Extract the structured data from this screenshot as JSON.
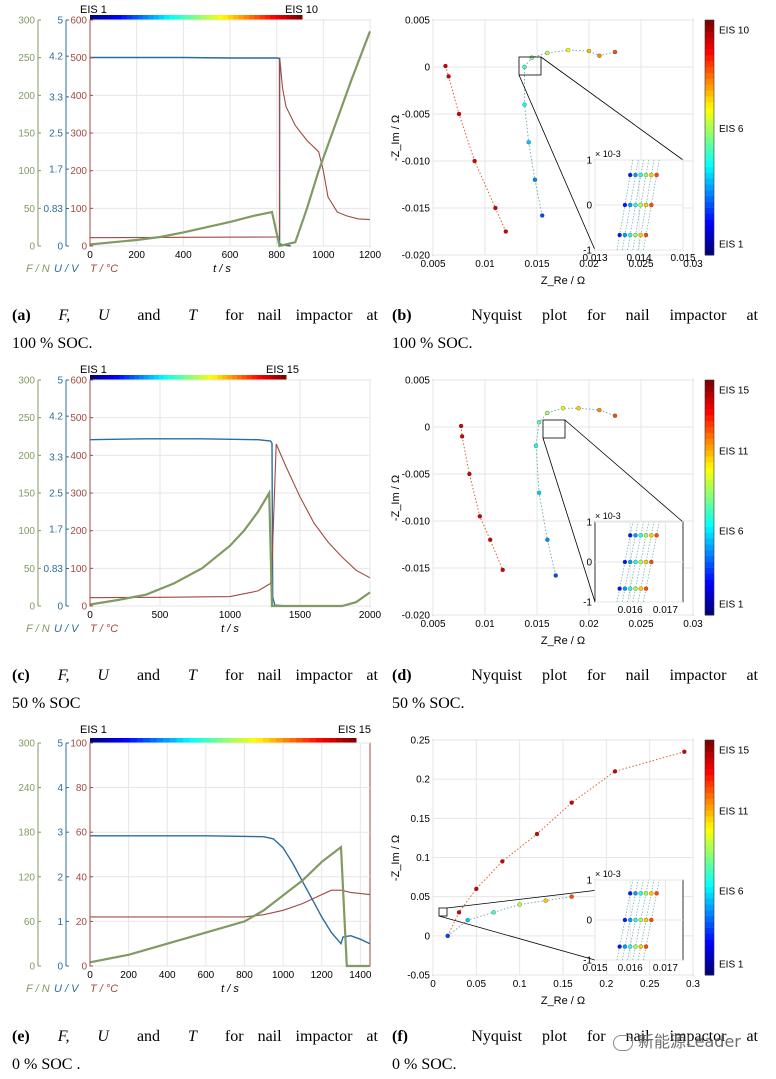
{
  "chart_data": [
    {
      "id": "a",
      "type": "line",
      "title": "F, U and T for nail impactor at 100 % SOC",
      "xlabel": "t / s",
      "xlim": [
        0,
        1200
      ],
      "xticks": [
        0,
        200,
        400,
        600,
        800,
        1000,
        1200
      ],
      "axes": [
        {
          "name": "F / N",
          "color": "#809a63",
          "lim": [
            0,
            300
          ],
          "ticks": [
            0,
            50,
            100,
            150,
            200,
            250,
            300
          ]
        },
        {
          "name": "U / V",
          "color": "#2b6c9e",
          "lim": [
            0,
            5
          ],
          "ticks": [
            0,
            0.83,
            1.7,
            2.5,
            3.3,
            4.2,
            5
          ]
        },
        {
          "name": "T / °C",
          "color": "#a04a40",
          "lim": [
            0,
            600
          ],
          "ticks": [
            0,
            100,
            200,
            300,
            400,
            500,
            600
          ]
        }
      ],
      "colorbar": {
        "start": "EIS 1",
        "end": "EIS 10"
      },
      "series": [
        {
          "name": "U",
          "axis": 1,
          "x": [
            0,
            200,
            400,
            600,
            800,
            812,
            812.5,
            830,
            860
          ],
          "y": [
            4.17,
            4.17,
            4.17,
            4.16,
            4.16,
            4.15,
            0.05,
            0.02,
            0.0
          ]
        },
        {
          "name": "T",
          "axis": 2,
          "x": [
            0,
            400,
            800,
            812,
            813,
            825,
            840,
            880,
            930,
            980,
            1000,
            1020,
            1060,
            1100,
            1150,
            1200
          ],
          "y": [
            22,
            23,
            24,
            25,
            500,
            420,
            370,
            320,
            280,
            250,
            200,
            130,
            90,
            80,
            72,
            70
          ]
        },
        {
          "name": "F",
          "axis": 0,
          "x": [
            0,
            100,
            200,
            300,
            400,
            500,
            600,
            700,
            780,
            812,
            880,
            930,
            980,
            1050,
            1120,
            1200
          ],
          "y": [
            2,
            5,
            8,
            12,
            18,
            25,
            32,
            40,
            45,
            0,
            5,
            50,
            100,
            160,
            220,
            285
          ]
        }
      ]
    },
    {
      "id": "b",
      "type": "scatter",
      "title": "Nyquist plot for nail impactor at 100 % SOC.",
      "xlabel": "Z_Re / Ω",
      "ylabel": "-Z_Im / Ω",
      "xlim": [
        0.005,
        0.03
      ],
      "ylim": [
        -0.02,
        0.005
      ],
      "xticks": [
        "0.005",
        "0.01",
        "0.015",
        "0.02",
        "0.025",
        "0.03"
      ],
      "yticks": [
        "0.005",
        "0",
        "-0.005",
        "-0.010",
        "-0.015",
        "-0.020"
      ],
      "colorbar": {
        "labels": [
          "EIS 10",
          "EIS 6",
          "EIS 1"
        ]
      },
      "inset": {
        "xlim": [
          0.013,
          0.015
        ],
        "ylim": [
          -1,
          1
        ],
        "xticks": [
          "0.013",
          "0.014",
          "0.015"
        ],
        "yticks": [
          "1",
          "0",
          "-1"
        ],
        "exponent": "× 10-3"
      },
      "series": [
        {
          "name": "EIS 10",
          "x": [
            0.0062,
            0.0065,
            0.0075,
            0.009,
            0.011,
            0.012
          ],
          "y": [
            0.0001,
            -0.001,
            -0.005,
            -0.01,
            -0.015,
            -0.0175
          ]
        },
        {
          "name": "EIS 1-9",
          "x": [
            0.0155,
            0.0148,
            0.0142,
            0.0138,
            0.0138,
            0.0145,
            0.016,
            0.018,
            0.02,
            0.021,
            0.0225
          ],
          "y": [
            -0.0158,
            -0.012,
            -0.008,
            -0.004,
            0.0,
            0.001,
            0.0015,
            0.0018,
            0.0017,
            0.0012,
            0.0016
          ]
        }
      ]
    },
    {
      "id": "c",
      "type": "line",
      "title": "F, U and T for nail impactor at 50 % SOC",
      "xlabel": "t / s",
      "xlim": [
        0,
        2000
      ],
      "xticks": [
        0,
        500,
        1000,
        1500,
        2000
      ],
      "axes": [
        {
          "name": "F / N",
          "color": "#809a63",
          "lim": [
            0,
            300
          ],
          "ticks": [
            0,
            50,
            100,
            150,
            200,
            250,
            300
          ]
        },
        {
          "name": "U / V",
          "color": "#2b6c9e",
          "lim": [
            0,
            5
          ],
          "ticks": [
            0,
            0.83,
            1.7,
            2.5,
            3.3,
            4.2,
            5
          ]
        },
        {
          "name": "T / °C",
          "color": "#a04a40",
          "lim": [
            0,
            600
          ],
          "ticks": [
            0,
            100,
            200,
            300,
            400,
            500,
            600
          ]
        }
      ],
      "colorbar": {
        "start": "EIS 1",
        "end": "EIS 15"
      },
      "series": [
        {
          "name": "U",
          "axis": 1,
          "x": [
            0,
            400,
            800,
            1200,
            1290,
            1300,
            1305,
            1320,
            1400
          ],
          "y": [
            3.68,
            3.7,
            3.7,
            3.68,
            3.65,
            3.6,
            0.2,
            0.02,
            0.0
          ]
        },
        {
          "name": "T",
          "axis": 2,
          "x": [
            0,
            500,
            1000,
            1200,
            1290,
            1300,
            1330,
            1400,
            1500,
            1600,
            1700,
            1800,
            1900,
            2000
          ],
          "y": [
            22,
            23,
            25,
            40,
            60,
            110,
            430,
            370,
            290,
            220,
            170,
            130,
            95,
            75
          ]
        },
        {
          "name": "F",
          "axis": 0,
          "x": [
            0,
            200,
            400,
            600,
            800,
            1000,
            1100,
            1200,
            1280,
            1300,
            1600,
            1800,
            1900,
            2000
          ],
          "y": [
            2,
            8,
            15,
            30,
            50,
            80,
            100,
            125,
            150,
            0,
            0,
            0,
            5,
            18
          ]
        }
      ]
    },
    {
      "id": "d",
      "type": "scatter",
      "title": "Nyquist plot for nail impactor at 50 % SOC.",
      "xlabel": "Z_Re / Ω",
      "ylabel": "-Z_Im / Ω",
      "xlim": [
        0.005,
        0.03
      ],
      "ylim": [
        -0.02,
        0.005
      ],
      "xticks": [
        "0.005",
        "0.01",
        "0.015",
        "0.02",
        "0.025",
        "0.03"
      ],
      "yticks": [
        "0.005",
        "0",
        "-0.005",
        "-0.010",
        "-0.015",
        "-0.020"
      ],
      "colorbar": {
        "labels": [
          "EIS 15",
          "EIS 11",
          "EIS 6",
          "EIS 1"
        ]
      },
      "inset": {
        "xlim": [
          0.015,
          0.0175
        ],
        "ylim": [
          -1,
          1
        ],
        "xticks": [
          "0.016",
          "0.017"
        ],
        "yticks": [
          "1",
          "0",
          "-1"
        ],
        "exponent": "× 10-3"
      },
      "series": [
        {
          "name": "EIS 15",
          "x": [
            0.0077,
            0.0078,
            0.0085,
            0.0095,
            0.0105,
            0.0117
          ],
          "y": [
            0.0001,
            -0.001,
            -0.005,
            -0.0095,
            -0.012,
            -0.0152
          ]
        },
        {
          "name": "EIS 1-14",
          "x": [
            0.0168,
            0.016,
            0.0152,
            0.0149,
            0.0152,
            0.016,
            0.0175,
            0.019,
            0.021,
            0.0225
          ],
          "y": [
            -0.0158,
            -0.012,
            -0.007,
            -0.002,
            0.0005,
            0.0015,
            0.002,
            0.002,
            0.0018,
            0.0012
          ]
        }
      ]
    },
    {
      "id": "e",
      "type": "line",
      "title": "F, U and T for nail impactor at 0 % SOC",
      "xlabel": "t / s",
      "xlim": [
        0,
        1450
      ],
      "xticks": [
        0,
        200,
        400,
        600,
        800,
        1000,
        1200,
        1400
      ],
      "axes": [
        {
          "name": "F / N",
          "color": "#809a63",
          "lim": [
            0,
            300
          ],
          "ticks": [
            0,
            60,
            120,
            180,
            240,
            300
          ]
        },
        {
          "name": "U / V",
          "color": "#2b6c9e",
          "lim": [
            0,
            5
          ],
          "ticks": [
            0,
            1,
            2,
            3,
            4,
            5
          ]
        },
        {
          "name": "T / °C",
          "color": "#a04a40",
          "lim": [
            0,
            100
          ],
          "ticks": [
            0,
            20,
            40,
            60,
            80,
            100
          ]
        }
      ],
      "colorbar": {
        "start": "EIS 1",
        "end": "EIS 15"
      },
      "series": [
        {
          "name": "U",
          "axis": 1,
          "x": [
            0,
            300,
            600,
            900,
            950,
            1000,
            1050,
            1100,
            1150,
            1200,
            1250,
            1300,
            1310,
            1350,
            1400,
            1450
          ],
          "y": [
            2.92,
            2.92,
            2.92,
            2.9,
            2.85,
            2.65,
            2.3,
            1.9,
            1.5,
            1.1,
            0.75,
            0.5,
            0.65,
            0.68,
            0.6,
            0.5
          ]
        },
        {
          "name": "T",
          "axis": 2,
          "x": [
            0,
            400,
            800,
            900,
            1000,
            1100,
            1200,
            1250,
            1300,
            1350,
            1450
          ],
          "y": [
            22,
            22,
            22,
            23,
            25,
            28,
            32,
            34,
            34,
            33,
            32
          ]
        },
        {
          "name": "F",
          "axis": 0,
          "x": [
            0,
            200,
            400,
            600,
            800,
            900,
            1000,
            1100,
            1200,
            1250,
            1300,
            1330,
            1450
          ],
          "y": [
            5,
            15,
            30,
            45,
            60,
            75,
            95,
            115,
            140,
            150,
            160,
            0,
            0
          ]
        }
      ]
    },
    {
      "id": "f",
      "type": "scatter",
      "title": "Nyquist plot for nail impactor at 0 % SOC.",
      "xlabel": "Z_Re / Ω",
      "ylabel": "-Z_Im / Ω",
      "xlim": [
        0,
        0.3
      ],
      "ylim": [
        -0.05,
        0.25
      ],
      "xticks": [
        "0",
        "0.05",
        "0.1",
        "0.15",
        "0.2",
        "0.25",
        "0.3"
      ],
      "yticks": [
        "0.25",
        "0.2",
        "0.15",
        "0.1",
        "0.05",
        "0",
        "-0.05"
      ],
      "colorbar": {
        "labels": [
          "EIS 15",
          "EIS 11",
          "EIS 6",
          "EIS 1"
        ]
      },
      "inset": {
        "xlim": [
          0.015,
          0.0175
        ],
        "ylim": [
          -1,
          1
        ],
        "xticks": [
          "0.015",
          "0.016",
          "0.017"
        ],
        "yticks": [
          "1",
          "0",
          "-1"
        ],
        "exponent": "× 10-3"
      },
      "series": [
        {
          "name": "EIS 15",
          "x": [
            0.017,
            0.03,
            0.05,
            0.08,
            0.12,
            0.16,
            0.21,
            0.29
          ],
          "y": [
            0.0,
            0.03,
            0.06,
            0.095,
            0.13,
            0.17,
            0.21,
            0.235
          ]
        },
        {
          "name": "EIS 1-14",
          "x": [
            0.017,
            0.04,
            0.07,
            0.1,
            0.13,
            0.16
          ],
          "y": [
            0.0,
            0.02,
            0.03,
            0.04,
            0.045,
            0.05
          ]
        }
      ]
    }
  ],
  "captions": {
    "a": {
      "label": "(a)",
      "pre": "",
      "line1_rest": "and",
      "line1_tail": "for nail impactor at",
      "line2": "100 % SOC."
    },
    "b": {
      "label": "(b)",
      "line1": "Nyquist plot for nail impactor at",
      "line2": "100 % SOC."
    },
    "c": {
      "label": "(c)",
      "line1_rest": "and",
      "line1_tail": "for nail impactor at",
      "line2": "50 % SOC"
    },
    "d": {
      "label": "(d)",
      "line1": "Nyquist plot for nail impactor at",
      "line2": "50 % SOC."
    },
    "e": {
      "label": "(e)",
      "line1_rest": "and",
      "line1_tail": "for nail impactor at",
      "line2": "0 % SOC ."
    },
    "f": {
      "label": "(f)",
      "line1": "Nyquist plot for nail impactor at",
      "line2": "0 % SOC."
    },
    "symbols": {
      "F": "F,",
      "U": "U",
      "T": "T"
    }
  },
  "watermark": "新能源Leader"
}
